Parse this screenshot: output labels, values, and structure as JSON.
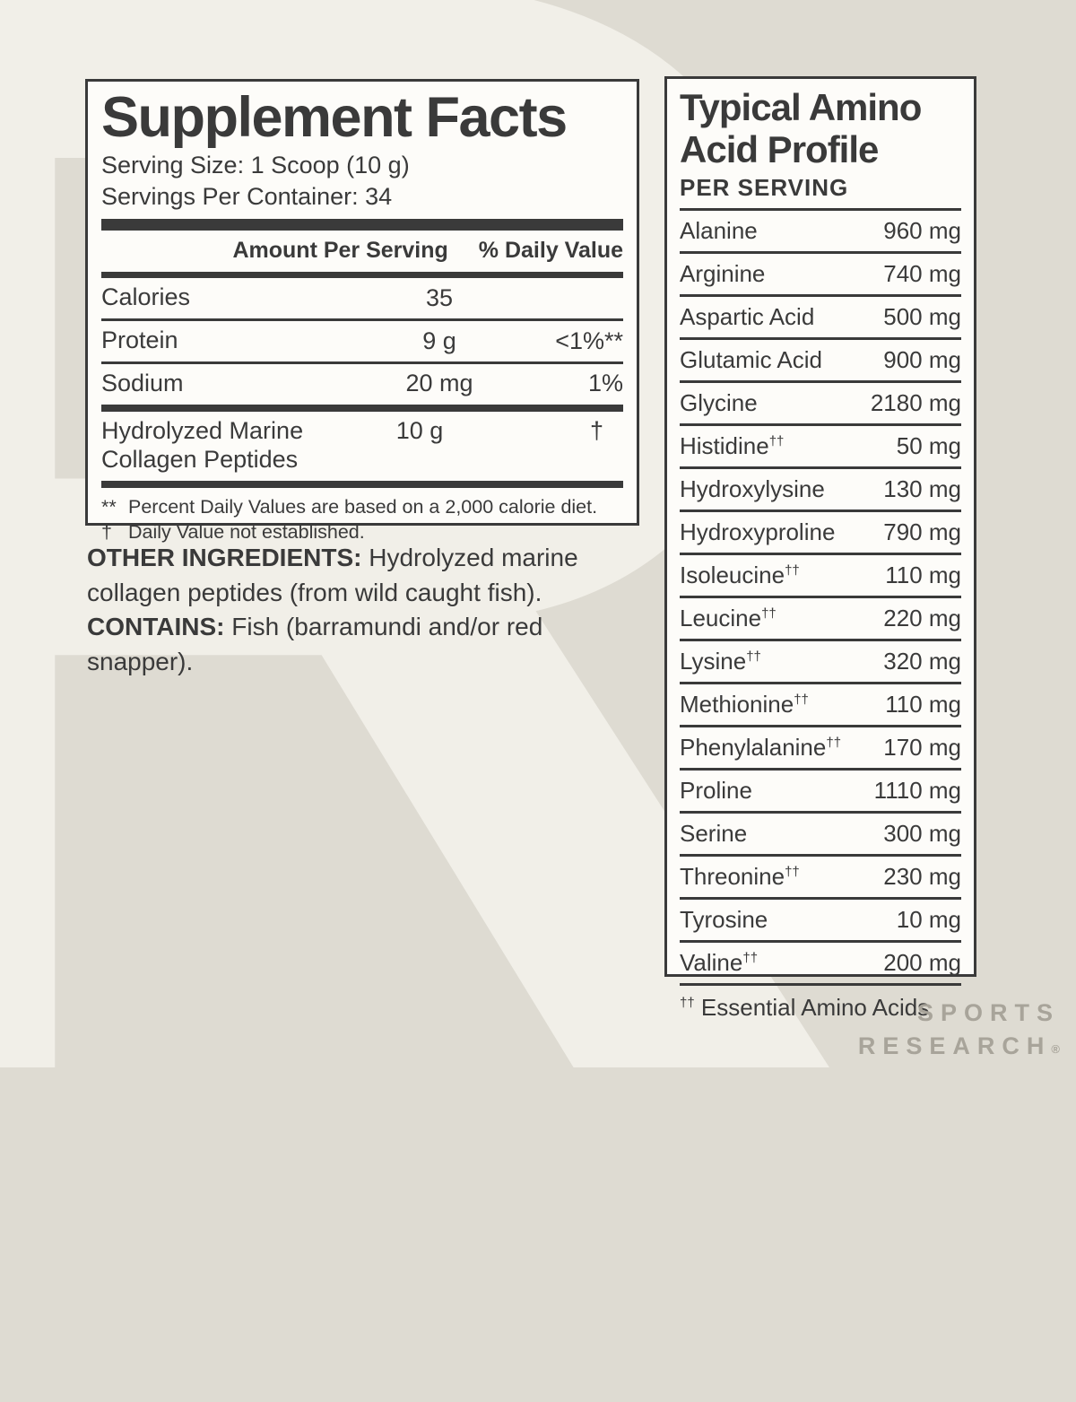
{
  "colors": {
    "page_background": "#dedbd2",
    "watermark": "#f1efe8",
    "panel_background": "#fdfcf9",
    "ink": "#3a3a3a",
    "logo_gray": "#a8a49a"
  },
  "background": {
    "watermark_letter": "R"
  },
  "supplement_facts": {
    "title": "Supplement Facts",
    "serving_size": "Serving Size: 1 Scoop (10 g)",
    "servings_per_container": "Servings Per Container: 34",
    "columns": {
      "amount": "Amount Per Serving",
      "daily_value": "% Daily Value"
    },
    "rows": [
      {
        "name": "Calories",
        "amount": "35",
        "dv": ""
      },
      {
        "name": "Protein",
        "amount": "9 g",
        "dv": "<1%**"
      },
      {
        "name": "Sodium",
        "amount": "20 mg",
        "dv": "1%"
      },
      {
        "name": "Hydrolyzed Marine Collagen Peptides",
        "amount": "10 g",
        "dv": "†"
      }
    ],
    "footnotes": [
      {
        "marker": "**",
        "text": "Percent Daily Values are based on a 2,000 calorie diet."
      },
      {
        "marker": "†",
        "text": "Daily Value not established."
      }
    ]
  },
  "other_ingredients": {
    "label": "OTHER INGREDIENTS:",
    "text": " Hydrolyzed marine collagen peptides (from wild caught fish)."
  },
  "contains": {
    "label": "CONTAINS:",
    "text": " Fish (barramundi and/or red snapper)."
  },
  "amino_profile": {
    "title_line1": "Typical Amino",
    "title_line2": "Acid Profile",
    "subtitle": "PER SERVING",
    "rows": [
      {
        "name": "Alanine",
        "sup": "",
        "value": "960 mg"
      },
      {
        "name": "Arginine",
        "sup": "",
        "value": "740 mg"
      },
      {
        "name": "Aspartic Acid",
        "sup": "",
        "value": "500 mg"
      },
      {
        "name": "Glutamic Acid",
        "sup": "",
        "value": "900 mg"
      },
      {
        "name": "Glycine",
        "sup": "",
        "value": "2180 mg"
      },
      {
        "name": "Histidine",
        "sup": "††",
        "value": "50 mg"
      },
      {
        "name": "Hydroxylysine",
        "sup": "",
        "value": "130 mg"
      },
      {
        "name": "Hydroxyproline",
        "sup": "",
        "value": "790 mg"
      },
      {
        "name": "Isoleucine",
        "sup": "††",
        "value": "110 mg"
      },
      {
        "name": "Leucine",
        "sup": "††",
        "value": "220 mg"
      },
      {
        "name": "Lysine",
        "sup": "††",
        "value": "320 mg"
      },
      {
        "name": "Methionine",
        "sup": "††",
        "value": "110 mg"
      },
      {
        "name": "Phenylalanine",
        "sup": "††",
        "value": "170 mg"
      },
      {
        "name": "Proline",
        "sup": "",
        "value": "1110 mg"
      },
      {
        "name": "Serine",
        "sup": "",
        "value": "300 mg"
      },
      {
        "name": "Threonine",
        "sup": "††",
        "value": "230 mg"
      },
      {
        "name": "Tyrosine",
        "sup": "",
        "value": "10 mg"
      },
      {
        "name": "Valine",
        "sup": "††",
        "value": "200 mg"
      }
    ],
    "footnote": {
      "marker": "††",
      "text": " Essential Amino Acids"
    }
  },
  "logo": {
    "line1": "SPORTS",
    "line2": "RESEARCH",
    "registered": "®"
  }
}
